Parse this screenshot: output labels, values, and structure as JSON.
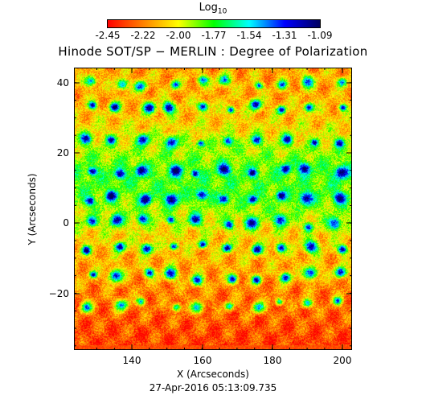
{
  "colorbar": {
    "label": "Log",
    "label_sub": "10",
    "ticks": [
      "-2.45",
      "-2.22",
      "-2.00",
      "-1.77",
      "-1.54",
      "-1.31",
      "-1.09"
    ],
    "colors": [
      "#ff0000",
      "#ff8000",
      "#ffff00",
      "#00ff00",
      "#00ffff",
      "#0000ff",
      "#000060"
    ]
  },
  "title": "Hinode SOT/SP − MERLIN : Degree of Polarization",
  "axes": {
    "xlabel": "X (Arcseconds)",
    "ylabel": "Y (Arcseconds)",
    "xticks": [
      "140",
      "160",
      "180",
      "200"
    ],
    "yticks": [
      "40",
      "20",
      "0",
      "−20"
    ],
    "xlim": [
      123,
      202
    ],
    "ylim": [
      -36,
      46
    ]
  },
  "timestamp": "27-Apr-2016 05:13:09.735"
}
